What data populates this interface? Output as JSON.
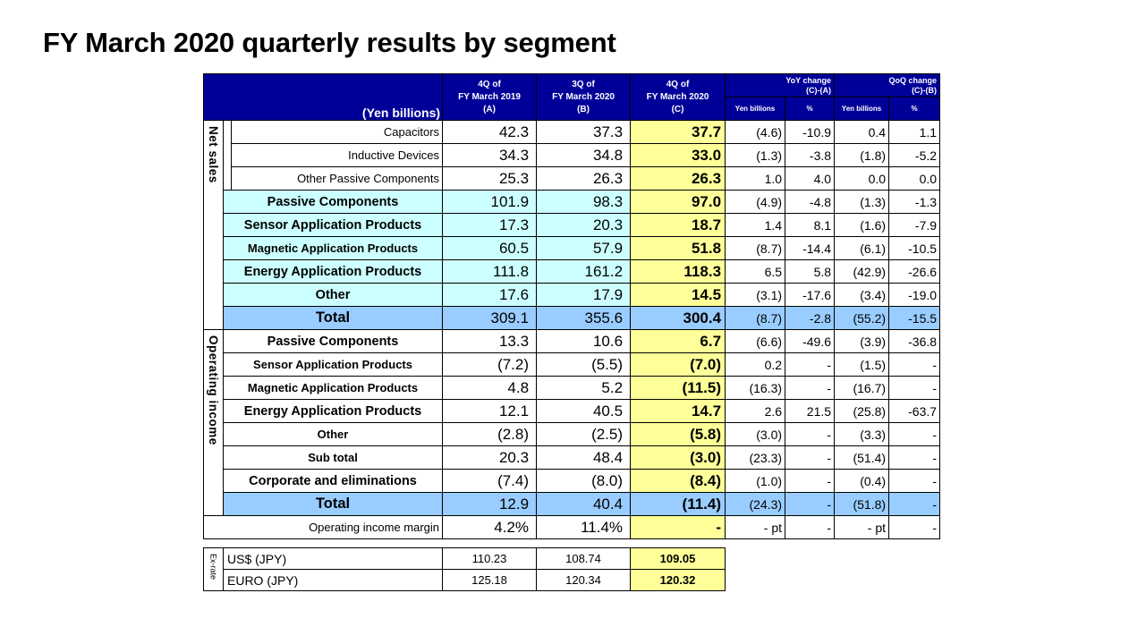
{
  "title": "FY March 2020 quarterly results by segment",
  "header": {
    "units": "(Yen billions)",
    "col_a": [
      "4Q of",
      "FY March 2019",
      "(A)"
    ],
    "col_b": [
      "3Q of",
      "FY March 2020",
      "(B)"
    ],
    "col_c": [
      "4Q of",
      "FY March 2020",
      "(C)"
    ],
    "yoy": [
      "YoY change",
      "(C)-(A)"
    ],
    "qoq": [
      "QoQ change",
      "(C)-(B)"
    ],
    "sub_yen": "Yen billions",
    "sub_pct": "%"
  },
  "net_sales": {
    "section_label": "Net sales",
    "sub_rows": [
      {
        "label": "Capacitors",
        "a": "42.3",
        "b": "37.3",
        "c": "37.7",
        "yoy": "(4.6)",
        "yoy_pct": "-10.9",
        "qoq": "0.4",
        "qoq_pct": "1.1"
      },
      {
        "label": "Inductive Devices",
        "a": "34.3",
        "b": "34.8",
        "c": "33.0",
        "yoy": "(1.3)",
        "yoy_pct": "-3.8",
        "qoq": "(1.8)",
        "qoq_pct": "-5.2"
      },
      {
        "label": "Other Passive Components",
        "a": "25.3",
        "b": "26.3",
        "c": "26.3",
        "yoy": "1.0",
        "yoy_pct": "4.0",
        "qoq": "0.0",
        "qoq_pct": "0.0"
      }
    ],
    "rows": [
      {
        "label": "Passive Components",
        "a": "101.9",
        "b": "98.3",
        "c": "97.0",
        "yoy": "(4.9)",
        "yoy_pct": "-4.8",
        "qoq": "(1.3)",
        "qoq_pct": "-1.3"
      },
      {
        "label": "Sensor Application Products",
        "a": "17.3",
        "b": "20.3",
        "c": "18.7",
        "yoy": "1.4",
        "yoy_pct": "8.1",
        "qoq": "(1.6)",
        "qoq_pct": "-7.9"
      },
      {
        "label": "Magnetic Application Products",
        "a": "60.5",
        "b": "57.9",
        "c": "51.8",
        "yoy": "(8.7)",
        "yoy_pct": "-14.4",
        "qoq": "(6.1)",
        "qoq_pct": "-10.5"
      },
      {
        "label": "Energy Application Products",
        "a": "111.8",
        "b": "161.2",
        "c": "118.3",
        "yoy": "6.5",
        "yoy_pct": "5.8",
        "qoq": "(42.9)",
        "qoq_pct": "-26.6"
      },
      {
        "label": "Other",
        "a": "17.6",
        "b": "17.9",
        "c": "14.5",
        "yoy": "(3.1)",
        "yoy_pct": "-17.6",
        "qoq": "(3.4)",
        "qoq_pct": "-19.0"
      }
    ],
    "total": {
      "label": "Total",
      "a": "309.1",
      "b": "355.6",
      "c": "300.4",
      "yoy": "(8.7)",
      "yoy_pct": "-2.8",
      "qoq": "(55.2)",
      "qoq_pct": "-15.5"
    }
  },
  "operating_income": {
    "section_label": "Operating income",
    "rows": [
      {
        "label": "Passive Components",
        "a": "13.3",
        "b": "10.6",
        "c": "6.7",
        "yoy": "(6.6)",
        "yoy_pct": "-49.6",
        "qoq": "(3.9)",
        "qoq_pct": "-36.8"
      },
      {
        "label": "Sensor Application Products",
        "a": "(7.2)",
        "b": "(5.5)",
        "c": "(7.0)",
        "yoy": "0.2",
        "yoy_pct": "-",
        "qoq": "(1.5)",
        "qoq_pct": "-"
      },
      {
        "label": "Magnetic Application Products",
        "a": "4.8",
        "b": "5.2",
        "c": "(11.5)",
        "yoy": "(16.3)",
        "yoy_pct": "-",
        "qoq": "(16.7)",
        "qoq_pct": "-"
      },
      {
        "label": "Energy Application Products",
        "a": "12.1",
        "b": "40.5",
        "c": "14.7",
        "yoy": "2.6",
        "yoy_pct": "21.5",
        "qoq": "(25.8)",
        "qoq_pct": "-63.7"
      },
      {
        "label": "Other",
        "a": "(2.8)",
        "b": "(2.5)",
        "c": "(5.8)",
        "yoy": "(3.0)",
        "yoy_pct": "-",
        "qoq": "(3.3)",
        "qoq_pct": "-"
      },
      {
        "label": "Sub total",
        "a": "20.3",
        "b": "48.4",
        "c": "(3.0)",
        "yoy": "(23.3)",
        "yoy_pct": "-",
        "qoq": "(51.4)",
        "qoq_pct": "-"
      },
      {
        "label": "Corporate and eliminations",
        "a": "(7.4)",
        "b": "(8.0)",
        "c": "(8.4)",
        "yoy": "(1.0)",
        "yoy_pct": "-",
        "qoq": "(0.4)",
        "qoq_pct": "-"
      }
    ],
    "total": {
      "label": "Total",
      "a": "12.9",
      "b": "40.4",
      "c": "(11.4)",
      "yoy": "(24.3)",
      "yoy_pct": "-",
      "qoq": "(51.8)",
      "qoq_pct": "-"
    }
  },
  "margin": {
    "label": "Operating income margin",
    "a": "4.2%",
    "b": "11.4%",
    "c": "-",
    "yoy": "- pt",
    "yoy_pct": "-",
    "qoq": "- pt",
    "qoq_pct": "-"
  },
  "exrate": {
    "section_label": "Ex-rate",
    "rows": [
      {
        "label": "US$ (JPY)",
        "a": "110.23",
        "b": "108.74",
        "c": "109.05"
      },
      {
        "label": "EURO (JPY)",
        "a": "125.18",
        "b": "120.34",
        "c": "120.32"
      }
    ]
  }
}
